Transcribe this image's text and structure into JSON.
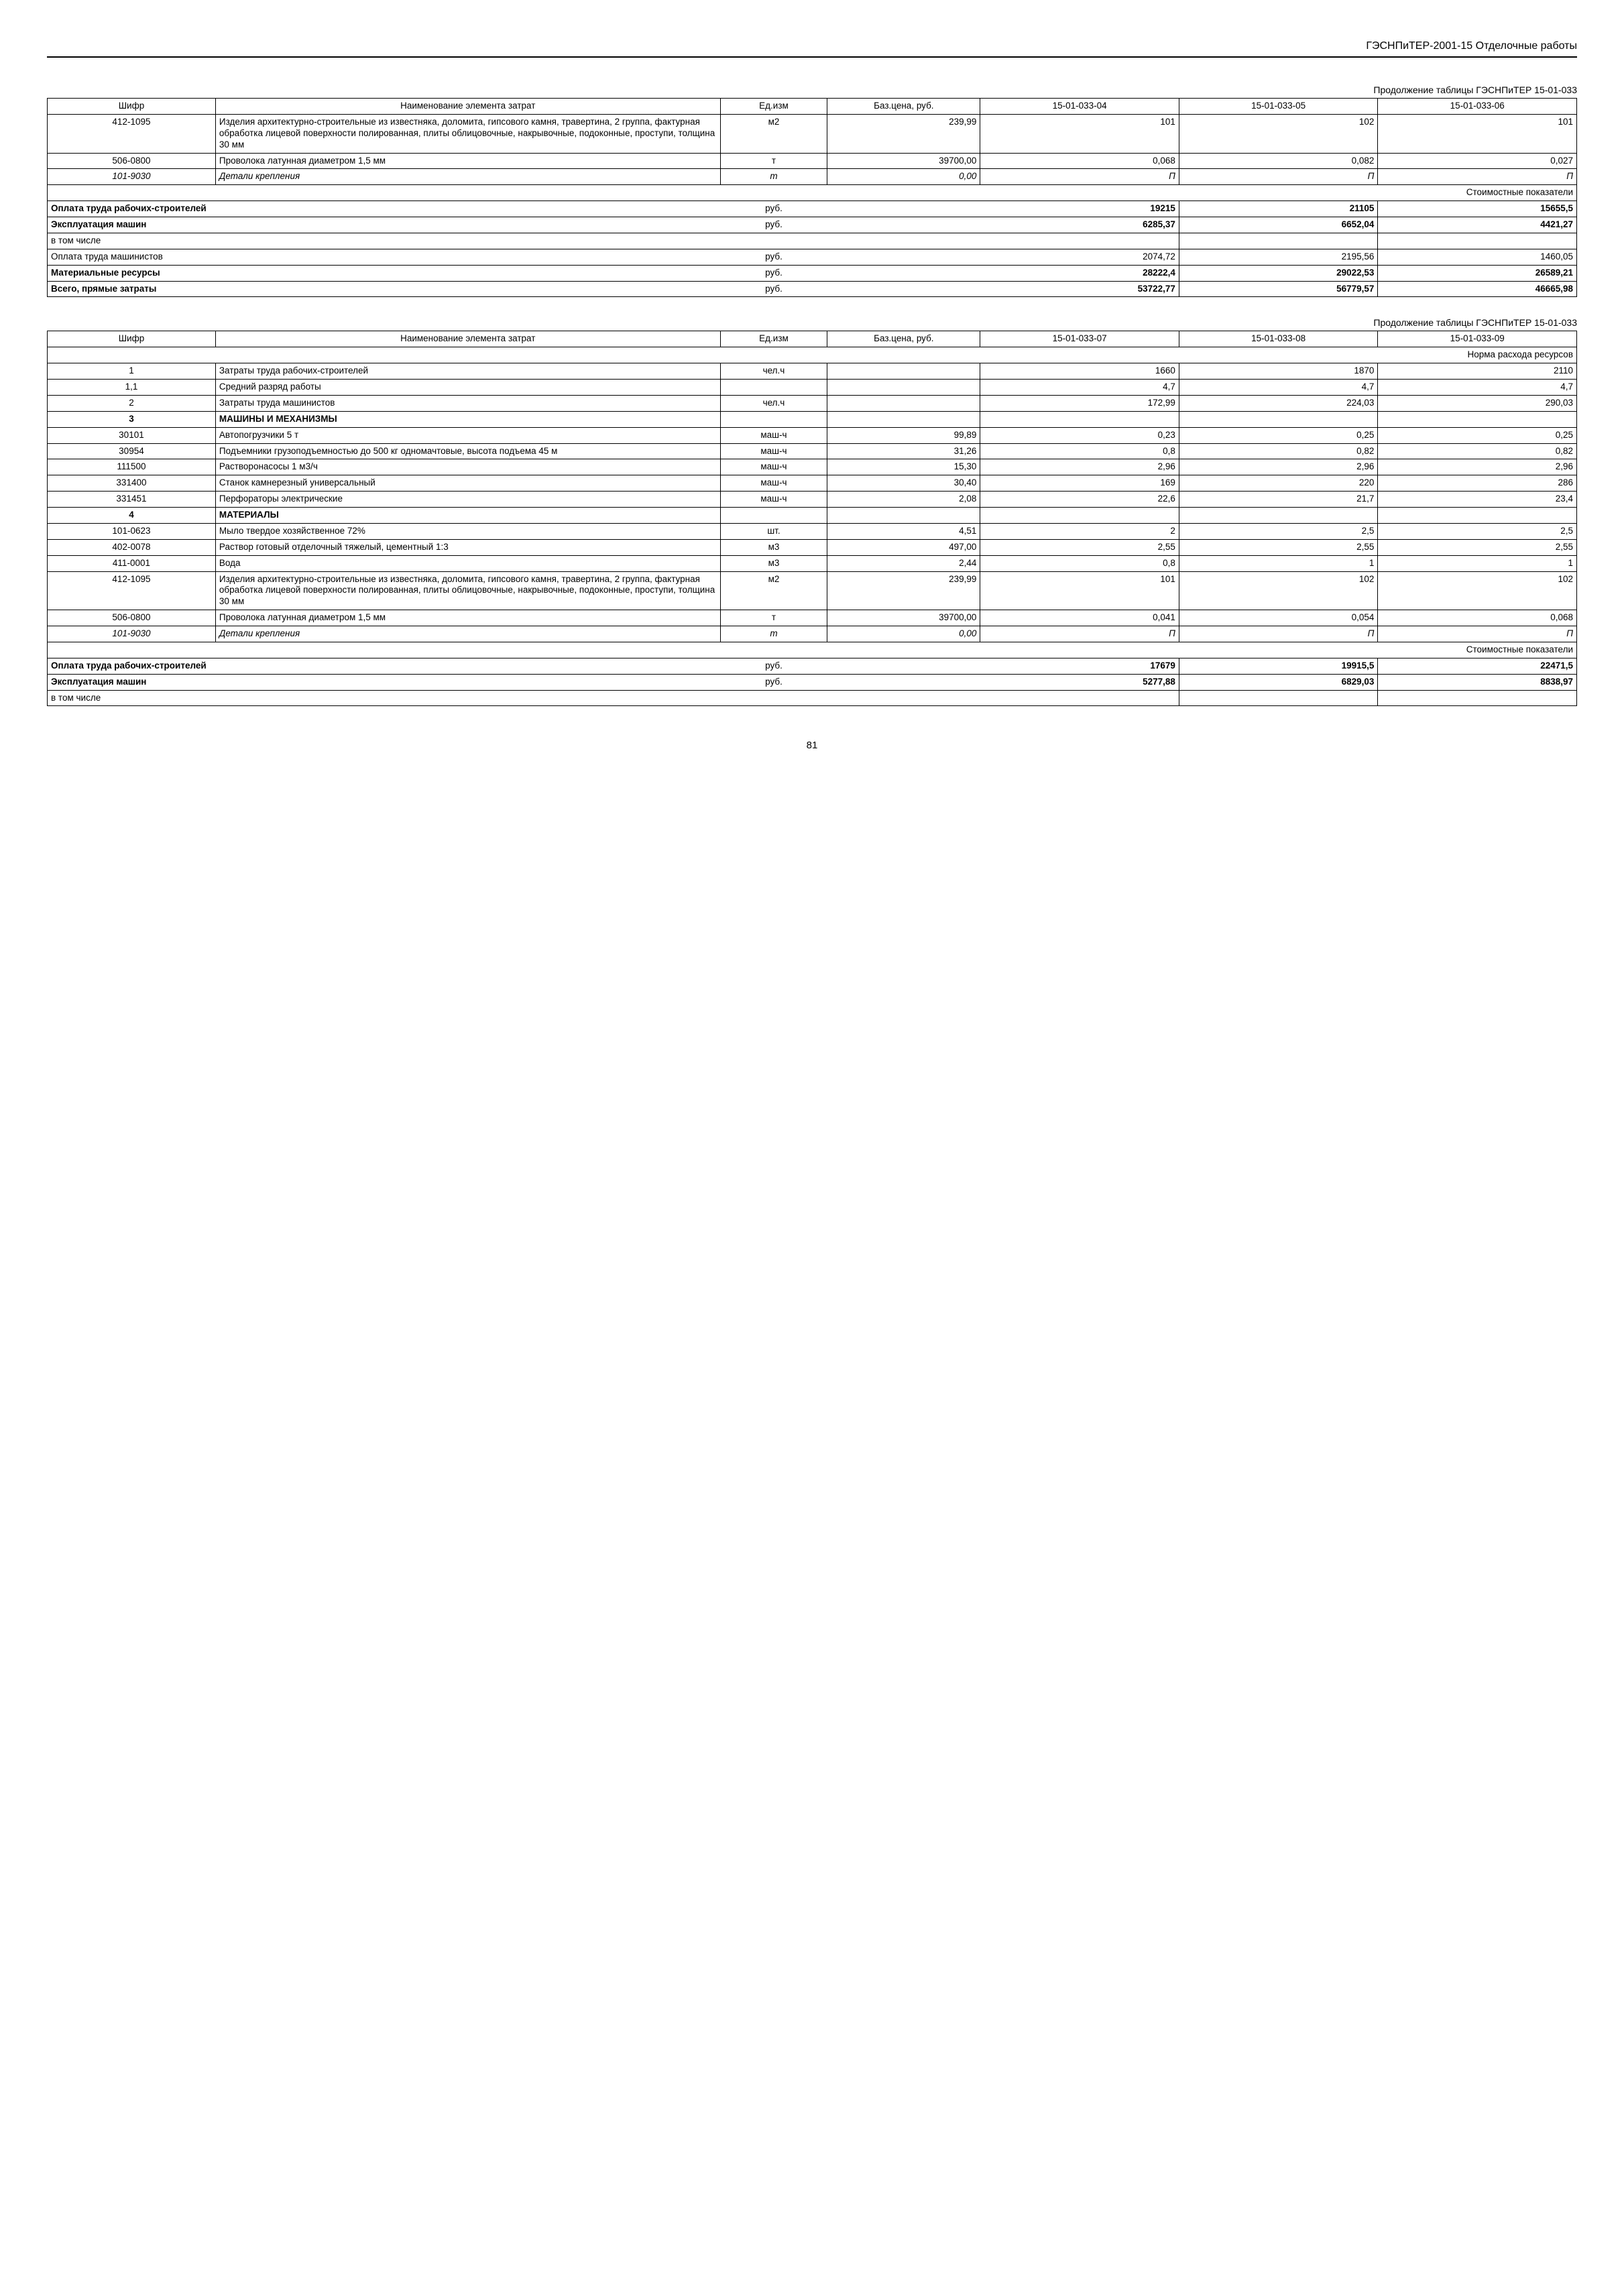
{
  "header_title": "ГЭСНПиТЕР-2001-15 Отделочные работы",
  "page_number": "81",
  "table1": {
    "caption": "Продолжение таблицы ГЭСНПиТЕР 15-01-033",
    "headers": {
      "code": "Шифр",
      "name": "Наименование элемента затрат",
      "unit": "Ед.изм",
      "price": "Баз.цена, руб.",
      "c1": "15-01-033-04",
      "c2": "15-01-033-05",
      "c3": "15-01-033-06"
    },
    "rows": [
      {
        "code": "412-1095",
        "name": "Изделия архитектурно-строительные из известняка, доломита, гипсового камня, травертина, 2 группа, фактурная обработка лицевой поверхности полированная, плиты облицовочные, накрывочные, подоконные, проступи, толщина 30 мм",
        "unit": "м2",
        "price": "239,99",
        "v1": "101",
        "v2": "102",
        "v3": "101"
      },
      {
        "code": "506-0800",
        "name": "Проволока латунная диаметром 1,5 мм",
        "unit": "т",
        "price": "39700,00",
        "v1": "0,068",
        "v2": "0,082",
        "v3": "0,027"
      },
      {
        "code": "101-9030",
        "name": "Детали крепления",
        "unit": "т",
        "price": "0,00",
        "v1": "П",
        "v2": "П",
        "v3": "П",
        "italic": true
      }
    ],
    "cost_header": "Стоимостные показатели",
    "summary": [
      {
        "label": "Оплата труда рабочих-строителей",
        "unit": "руб.",
        "v1": "19215",
        "v2": "21105",
        "v3": "15655,5",
        "bold": true
      },
      {
        "label": "Эксплуатация машин",
        "unit": "руб.",
        "v1": "6285,37",
        "v2": "6652,04",
        "v3": "4421,27",
        "bold": true
      },
      {
        "label": "в том числе",
        "unit": "",
        "v1": "",
        "v2": "",
        "v3": ""
      },
      {
        "label": "Оплата труда машинистов",
        "unit": "руб.",
        "v1": "2074,72",
        "v2": "2195,56",
        "v3": "1460,05"
      },
      {
        "label": "Материальные ресурсы",
        "unit": "руб.",
        "v1": "28222,4",
        "v2": "29022,53",
        "v3": "26589,21",
        "bold": true
      },
      {
        "label": "Всего, прямые затраты",
        "unit": "руб.",
        "v1": "53722,77",
        "v2": "56779,57",
        "v3": "46665,98",
        "bold": true
      }
    ]
  },
  "table2": {
    "caption": "Продолжение таблицы ГЭСНПиТЕР 15-01-033",
    "headers": {
      "code": "Шифр",
      "name": "Наименование элемента затрат",
      "unit": "Ед.изм",
      "price": "Баз.цена, руб.",
      "c1": "15-01-033-07",
      "c2": "15-01-033-08",
      "c3": "15-01-033-09"
    },
    "norm_header": "Норма расхода ресурсов",
    "rows": [
      {
        "code": "1",
        "name": "Затраты труда рабочих-строителей",
        "unit": "чел.ч",
        "price": "",
        "v1": "1660",
        "v2": "1870",
        "v3": "2110"
      },
      {
        "code": "1,1",
        "name": "Средний разряд работы",
        "unit": "",
        "price": "",
        "v1": "4,7",
        "v2": "4,7",
        "v3": "4,7"
      },
      {
        "code": "2",
        "name": "Затраты труда машинистов",
        "unit": "чел.ч",
        "price": "",
        "v1": "172,99",
        "v2": "224,03",
        "v3": "290,03"
      },
      {
        "code": "3",
        "name": "МАШИНЫ И МЕХАНИЗМЫ",
        "bold": true,
        "section": true
      },
      {
        "code": "30101",
        "name": "Автопогрузчики 5 т",
        "unit": "маш-ч",
        "price": "99,89",
        "v1": "0,23",
        "v2": "0,25",
        "v3": "0,25"
      },
      {
        "code": "30954",
        "name": "Подъемники грузоподъемностью до 500 кг одномачтовые, высота подъема 45 м",
        "unit": "маш-ч",
        "price": "31,26",
        "v1": "0,8",
        "v2": "0,82",
        "v3": "0,82"
      },
      {
        "code": "111500",
        "name": "Растворонасосы 1 м3/ч",
        "unit": "маш-ч",
        "price": "15,30",
        "v1": "2,96",
        "v2": "2,96",
        "v3": "2,96"
      },
      {
        "code": "331400",
        "name": "Станок камнерезный универсальный",
        "unit": "маш-ч",
        "price": "30,40",
        "v1": "169",
        "v2": "220",
        "v3": "286"
      },
      {
        "code": "331451",
        "name": "Перфораторы электрические",
        "unit": "маш-ч",
        "price": "2,08",
        "v1": "22,6",
        "v2": "21,7",
        "v3": "23,4"
      },
      {
        "code": "4",
        "name": "МАТЕРИАЛЫ",
        "bold": true,
        "section": true
      },
      {
        "code": "101-0623",
        "name": "Мыло твердое хозяйственное 72%",
        "unit": "шт.",
        "price": "4,51",
        "v1": "2",
        "v2": "2,5",
        "v3": "2,5"
      },
      {
        "code": "402-0078",
        "name": "Раствор готовый отделочный тяжелый, цементный 1:3",
        "unit": "м3",
        "price": "497,00",
        "v1": "2,55",
        "v2": "2,55",
        "v3": "2,55"
      },
      {
        "code": "411-0001",
        "name": "Вода",
        "unit": "м3",
        "price": "2,44",
        "v1": "0,8",
        "v2": "1",
        "v3": "1"
      },
      {
        "code": "412-1095",
        "name": "Изделия архитектурно-строительные из известняка, доломита, гипсового камня, травертина, 2 группа, фактурная обработка лицевой поверхности полированная, плиты облицовочные, накрывочные, подоконные, проступи, толщина 30 мм",
        "unit": "м2",
        "price": "239,99",
        "v1": "101",
        "v2": "102",
        "v3": "102"
      },
      {
        "code": "506-0800",
        "name": "Проволока латунная диаметром 1,5 мм",
        "unit": "т",
        "price": "39700,00",
        "v1": "0,041",
        "v2": "0,054",
        "v3": "0,068"
      },
      {
        "code": "101-9030",
        "name": "Детали крепления",
        "unit": "т",
        "price": "0,00",
        "v1": "П",
        "v2": "П",
        "v3": "П",
        "italic": true
      }
    ],
    "cost_header": "Стоимостные показатели",
    "summary": [
      {
        "label": "Оплата труда рабочих-строителей",
        "unit": "руб.",
        "v1": "17679",
        "v2": "19915,5",
        "v3": "22471,5",
        "bold": true
      },
      {
        "label": "Эксплуатация машин",
        "unit": "руб.",
        "v1": "5277,88",
        "v2": "6829,03",
        "v3": "8838,97",
        "bold": true
      },
      {
        "label": "в том числе",
        "unit": "",
        "v1": "",
        "v2": "",
        "v3": ""
      }
    ]
  }
}
